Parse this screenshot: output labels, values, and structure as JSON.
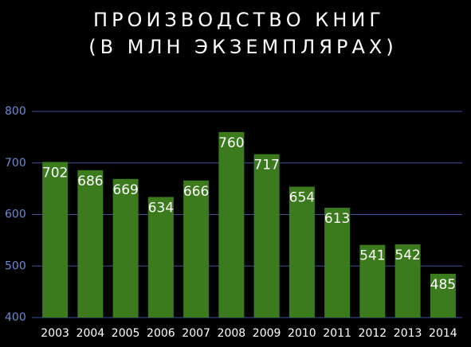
{
  "chart_data": {
    "type": "bar",
    "title": "ПРОИЗВОДСТВО КНИГ",
    "subtitle": "(В МЛН ЭКЗЕМПЛЯРАХ)",
    "categories": [
      "2003",
      "2004",
      "2005",
      "2006",
      "2007",
      "2008",
      "2009",
      "2010",
      "2011",
      "2012",
      "2013",
      "2014"
    ],
    "values": [
      702,
      686,
      669,
      634,
      666,
      760,
      717,
      654,
      613,
      541,
      542,
      485
    ],
    "color": "#3c7a1e",
    "ylim": [
      400,
      800
    ],
    "yticks": [
      400,
      500,
      600,
      700,
      800
    ],
    "grid": true
  }
}
